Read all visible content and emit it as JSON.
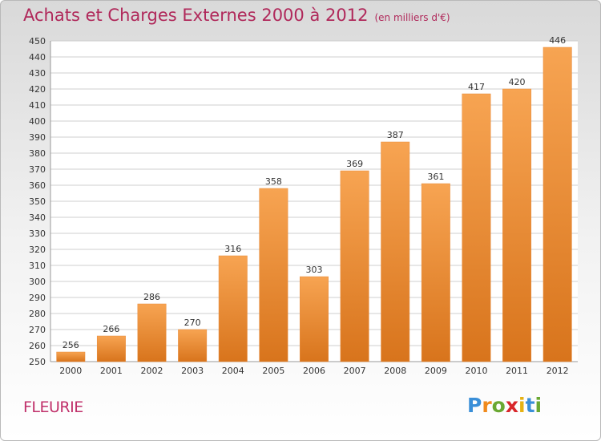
{
  "header": {
    "title": "Achats et Charges Externes 2000 à 2012",
    "subtitle": "(en milliers d'€)"
  },
  "footer": {
    "location": "FLEURIE",
    "logo_letters": [
      "P",
      "r",
      "o",
      "x",
      "i",
      "t",
      "i"
    ]
  },
  "colors": {
    "title": "#b0285a",
    "bar_top": "#f7a452",
    "bar_bottom": "#d8741c",
    "grid": "#cfcfcf",
    "axis_text": "#333333"
  },
  "chart_data": {
    "type": "bar",
    "title": "Achats et Charges Externes 2000 à 2012",
    "subtitle": "(en milliers d'€)",
    "xlabel": "",
    "ylabel": "",
    "categories": [
      "2000",
      "2001",
      "2002",
      "2003",
      "2004",
      "2005",
      "2006",
      "2007",
      "2008",
      "2009",
      "2010",
      "2011",
      "2012"
    ],
    "values": [
      256,
      266,
      286,
      270,
      316,
      358,
      303,
      369,
      387,
      361,
      417,
      420,
      446
    ],
    "ylim": [
      250,
      450
    ],
    "ytick_step": 10,
    "grid": true,
    "data_labels": true
  }
}
